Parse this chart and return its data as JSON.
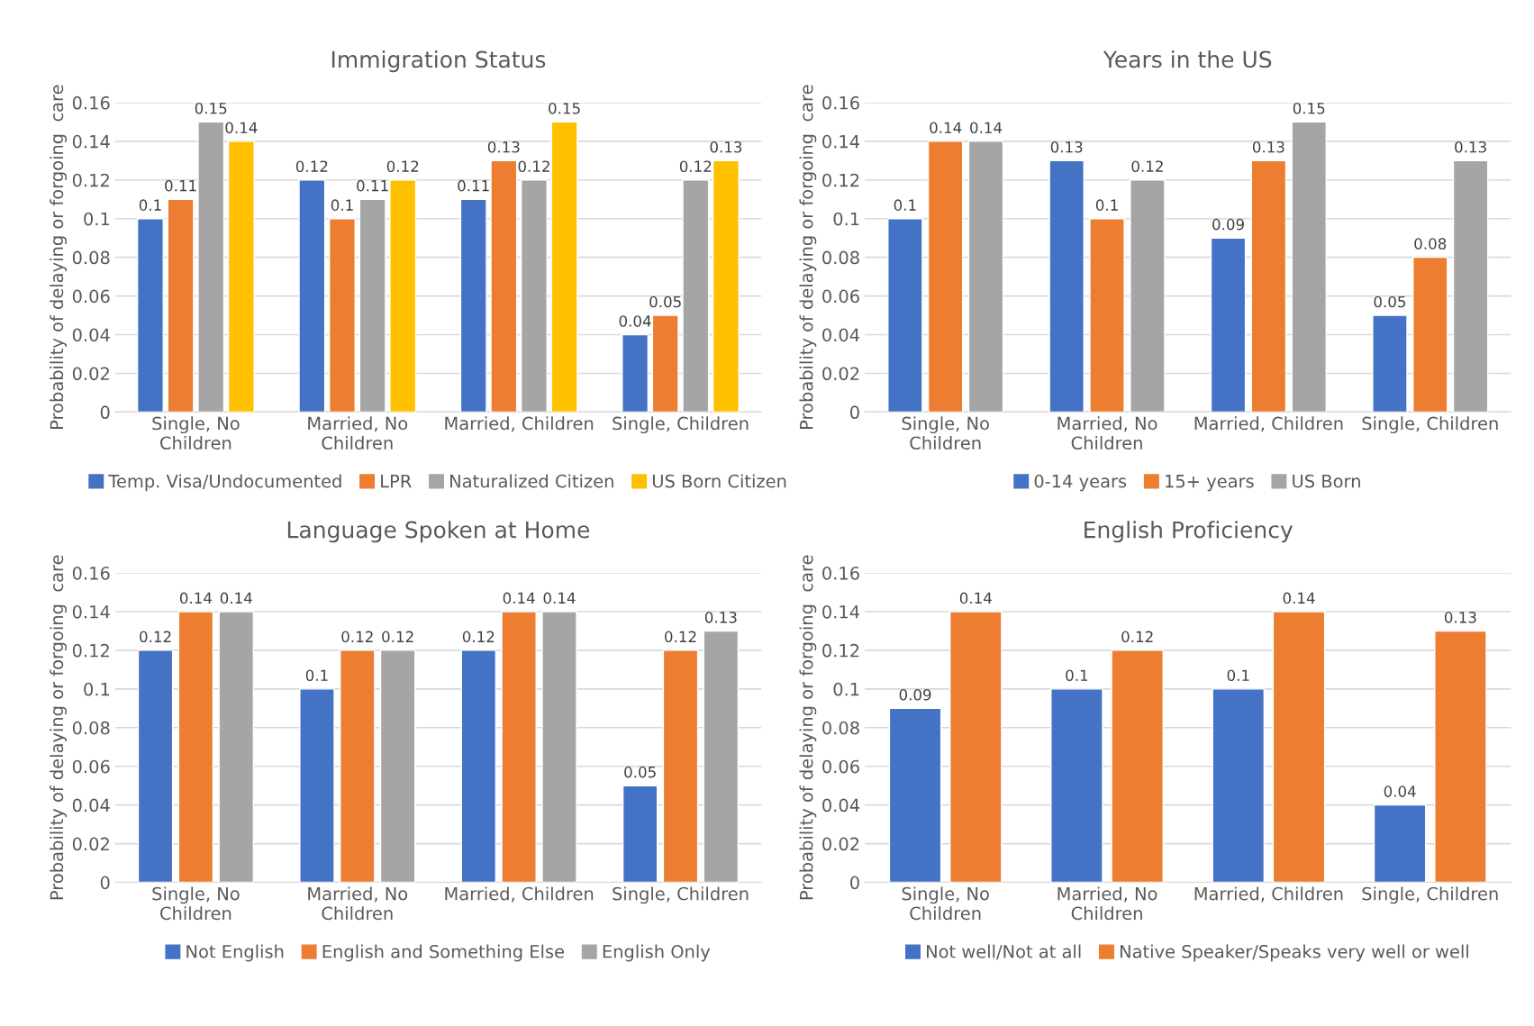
{
  "chart_data": [
    {
      "type": "bar",
      "title": "Immigration Status",
      "ylabel": "Probability of delaying or forgoing  care",
      "categories": [
        "Single, No Children",
        "Married, No Children",
        "Married, Children",
        "Single, Children"
      ],
      "ylim": [
        0,
        0.16
      ],
      "yticks": [
        0,
        0.02,
        0.04,
        0.06,
        0.08,
        0.1,
        0.12,
        0.14,
        0.16
      ],
      "grid": "y",
      "legend": "bottom",
      "data_labels": true,
      "series": [
        {
          "name": "Temp. Visa/Undocumented",
          "color": "#4472c4",
          "values": [
            0.1,
            0.12,
            0.11,
            0.04
          ]
        },
        {
          "name": "LPR",
          "color": "#ed7d31",
          "values": [
            0.11,
            0.1,
            0.13,
            0.05
          ]
        },
        {
          "name": "Naturalized Citizen",
          "color": "#a5a5a5",
          "values": [
            0.15,
            0.11,
            0.12,
            0.12
          ]
        },
        {
          "name": "US Born Citizen",
          "color": "#ffc000",
          "values": [
            0.14,
            0.12,
            0.15,
            0.13
          ]
        }
      ]
    },
    {
      "type": "bar",
      "title": "Years in the US",
      "ylabel": "Probability of delaying or forgoing  care",
      "categories": [
        "Single, No Children",
        "Married, No Children",
        "Married, Children",
        "Single, Children"
      ],
      "ylim": [
        0,
        0.16
      ],
      "yticks": [
        0,
        0.02,
        0.04,
        0.06,
        0.08,
        0.1,
        0.12,
        0.14,
        0.16
      ],
      "grid": "y",
      "legend": "bottom",
      "data_labels": true,
      "series": [
        {
          "name": "0-14 years",
          "color": "#4472c4",
          "values": [
            0.1,
            0.13,
            0.09,
            0.05
          ]
        },
        {
          "name": "15+ years",
          "color": "#ed7d31",
          "values": [
            0.14,
            0.1,
            0.13,
            0.08
          ]
        },
        {
          "name": "US Born",
          "color": "#a5a5a5",
          "values": [
            0.14,
            0.12,
            0.15,
            0.13
          ]
        }
      ]
    },
    {
      "type": "bar",
      "title": "Language Spoken at Home",
      "ylabel": "Probability of delaying or forgoing  care",
      "categories": [
        "Single, No Children",
        "Married, No Children",
        "Married, Children",
        "Single, Children"
      ],
      "ylim": [
        0,
        0.16
      ],
      "yticks": [
        0,
        0.02,
        0.04,
        0.06,
        0.08,
        0.1,
        0.12,
        0.14,
        0.16
      ],
      "grid": "y",
      "legend": "bottom",
      "data_labels": true,
      "series": [
        {
          "name": "Not English",
          "color": "#4472c4",
          "values": [
            0.12,
            0.1,
            0.12,
            0.05
          ]
        },
        {
          "name": "English and Something Else",
          "color": "#ed7d31",
          "values": [
            0.14,
            0.12,
            0.14,
            0.12
          ]
        },
        {
          "name": "English Only",
          "color": "#a5a5a5",
          "values": [
            0.14,
            0.12,
            0.14,
            0.13
          ]
        }
      ]
    },
    {
      "type": "bar",
      "title": "English Proficiency",
      "ylabel": "Probability of delaying or forgoing  care",
      "categories": [
        "Single, No Children",
        "Married, No Children",
        "Married, Children",
        "Single, Children"
      ],
      "ylim": [
        0,
        0.16
      ],
      "yticks": [
        0,
        0.02,
        0.04,
        0.06,
        0.08,
        0.1,
        0.12,
        0.14,
        0.16
      ],
      "grid": "y",
      "legend": "bottom",
      "data_labels": true,
      "series": [
        {
          "name": "Not well/Not at all",
          "color": "#4472c4",
          "values": [
            0.09,
            0.1,
            0.1,
            0.04
          ]
        },
        {
          "name": "Native Speaker/Speaks very well or well",
          "color": "#ed7d31",
          "values": [
            0.14,
            0.12,
            0.14,
            0.13
          ]
        }
      ]
    }
  ]
}
